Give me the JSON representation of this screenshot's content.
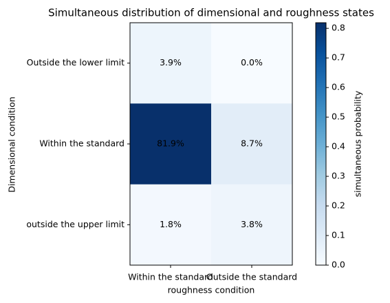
{
  "chart_data": {
    "type": "heatmap",
    "title": "Simultaneous distribution of dimensional and roughness states",
    "x_label": "roughness condition",
    "y_label": "Dimensional condition",
    "x_categories": [
      "Within the standard",
      "Outside the standard"
    ],
    "y_categories": [
      "Outside the lower limit",
      "Within the standard",
      "outside the upper limit"
    ],
    "values": [
      [
        0.039,
        0.0
      ],
      [
        0.819,
        0.087
      ],
      [
        0.018,
        0.038
      ]
    ],
    "value_labels": [
      [
        "3.9%",
        "0.0%"
      ],
      [
        "81.9%",
        "8.7%"
      ],
      [
        "1.8%",
        "3.8%"
      ]
    ],
    "colormap": "Blues",
    "colorbar_label": "simultaneous probability",
    "clim": [
      0,
      0.819
    ],
    "cticks": [
      {
        "value": 0,
        "label": "0.0"
      },
      0.1,
      0.2,
      0.3,
      0.4,
      0.5,
      0.6,
      0.7,
      0.8
    ]
  }
}
